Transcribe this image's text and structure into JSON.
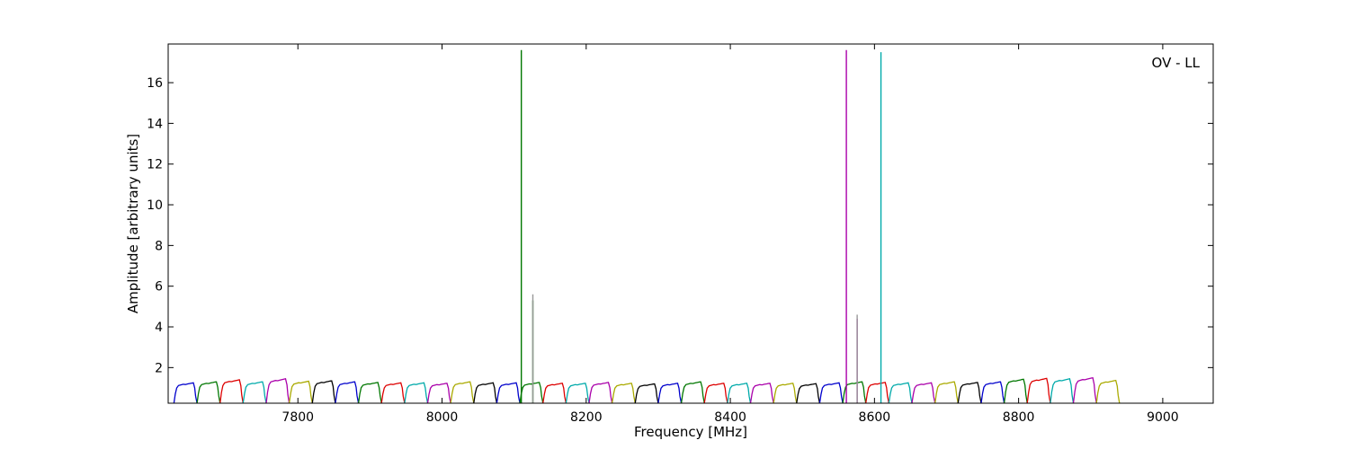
{
  "chart_data": {
    "type": "line",
    "annotation": "OV - LL",
    "xlabel": "Frequency [MHz]",
    "ylabel": "Amplitude [arbitrary units]",
    "xlim": [
      7620,
      9070
    ],
    "ylim": [
      0.25,
      17.9
    ],
    "x_ticks": [
      7800,
      8000,
      8200,
      8400,
      8600,
      8800,
      9000
    ],
    "y_ticks": [
      2,
      4,
      6,
      8,
      10,
      12,
      14,
      16
    ],
    "grid": false,
    "legend": "none",
    "color_cycle": [
      "#0000cc",
      "#007700",
      "#dd0000",
      "#00aaaa",
      "#aa00aa",
      "#aaaa00",
      "#000000"
    ],
    "channel_start": 7628,
    "channel_width": 32,
    "channel_shape": {
      "rel_x": [
        0,
        0.06,
        0.12,
        0.2,
        0.3,
        0.4,
        0.5,
        0.6,
        0.7,
        0.78,
        0.84,
        0.9,
        0.94,
        1.0
      ],
      "rel_y": [
        0.25,
        0.7,
        1.0,
        1.12,
        1.15,
        1.18,
        1.17,
        1.2,
        1.22,
        1.24,
        1.25,
        1.0,
        0.6,
        0.25
      ]
    },
    "channel_scales": [
      1.0,
      1.05,
      1.15,
      1.05,
      1.2,
      1.08,
      1.1,
      1.05,
      1.02,
      1.0,
      1.0,
      0.98,
      1.05,
      1.0,
      1.0,
      1.02,
      0.98,
      0.98,
      1.02,
      0.98,
      0.95,
      0.98,
      1.05,
      0.98,
      0.98,
      0.98,
      0.98,
      0.96,
      1.0,
      1.05,
      1.02,
      1.0,
      1.0,
      1.05,
      1.02,
      1.05,
      1.18,
      1.22,
      1.2,
      1.25,
      1.12
    ],
    "spikes": [
      {
        "x": 8110,
        "y": 17.6,
        "color": "#007700"
      },
      {
        "x": 8126,
        "y": 5.3,
        "color": "#007700"
      },
      {
        "x": 8126,
        "y": 5.6,
        "color": "#999999"
      },
      {
        "x": 8561,
        "y": 17.6,
        "color": "#aa00aa"
      },
      {
        "x": 8576,
        "y": 4.4,
        "color": "#aa00aa"
      },
      {
        "x": 8576,
        "y": 4.6,
        "color": "#999999"
      },
      {
        "x": 8609,
        "y": 17.5,
        "color": "#00aaaa"
      }
    ]
  }
}
